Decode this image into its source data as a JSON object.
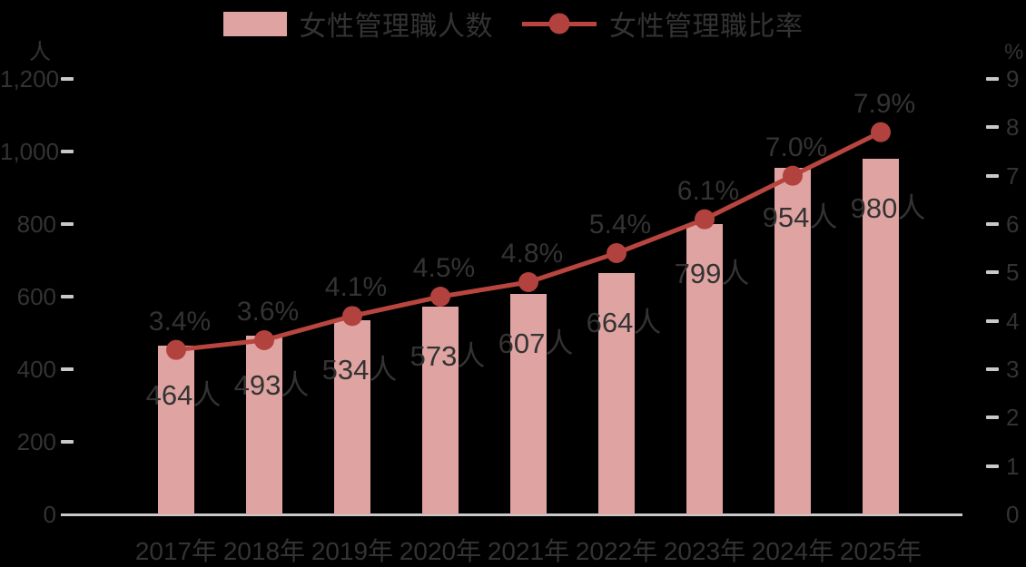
{
  "colors": {
    "background": "#000000",
    "bar": "#dfa4a2",
    "line": "#b8463f",
    "marker": "#b2423e",
    "tick": "#c9c9c9",
    "text": "#333333"
  },
  "legend": {
    "bar_label": "女性管理職人数",
    "line_label": "女性管理職比率"
  },
  "left_axis": {
    "unit": "人",
    "ticks": [
      {
        "v": 0,
        "label": "0"
      },
      {
        "v": 200,
        "label": "200"
      },
      {
        "v": 400,
        "label": "400"
      },
      {
        "v": 600,
        "label": "600"
      },
      {
        "v": 800,
        "label": "800"
      },
      {
        "v": 1000,
        "label": "1,000"
      },
      {
        "v": 1200,
        "label": "1,200"
      }
    ]
  },
  "right_axis": {
    "unit": "%",
    "ticks": [
      {
        "v": 0,
        "label": "0"
      },
      {
        "v": 1,
        "label": "1"
      },
      {
        "v": 2,
        "label": "2"
      },
      {
        "v": 3,
        "label": "3"
      },
      {
        "v": 4,
        "label": "4"
      },
      {
        "v": 5,
        "label": "5"
      },
      {
        "v": 6,
        "label": "6"
      },
      {
        "v": 7,
        "label": "7"
      },
      {
        "v": 8,
        "label": "8"
      },
      {
        "v": 9,
        "label": "9"
      }
    ]
  },
  "chart_data": {
    "type": "bar",
    "categories": [
      "2017年",
      "2018年",
      "2019年",
      "2020年",
      "2021年",
      "2022年",
      "2023年",
      "2024年",
      "2025年"
    ],
    "series": [
      {
        "name": "女性管理職人数",
        "type": "bar",
        "axis": "left",
        "values": [
          464,
          493,
          534,
          573,
          607,
          664,
          799,
          954,
          980
        ],
        "labels": [
          "464人",
          "493人",
          "534人",
          "573人",
          "607人",
          "664人",
          "799人",
          "954人",
          "980人"
        ]
      },
      {
        "name": "女性管理職比率",
        "type": "line",
        "axis": "right",
        "values": [
          3.4,
          3.6,
          4.1,
          4.5,
          4.8,
          5.4,
          6.1,
          7.0,
          7.9
        ],
        "labels": [
          "3.4%",
          "3.6%",
          "4.1%",
          "4.5%",
          "4.8%",
          "5.4%",
          "6.1%",
          "7.0%",
          "7.9%"
        ]
      }
    ],
    "left_ylabel": "人",
    "right_ylabel": "%",
    "left_ylim": [
      0,
      1200
    ],
    "right_ylim": [
      0,
      9
    ],
    "grid": false,
    "legend_position": "top"
  }
}
